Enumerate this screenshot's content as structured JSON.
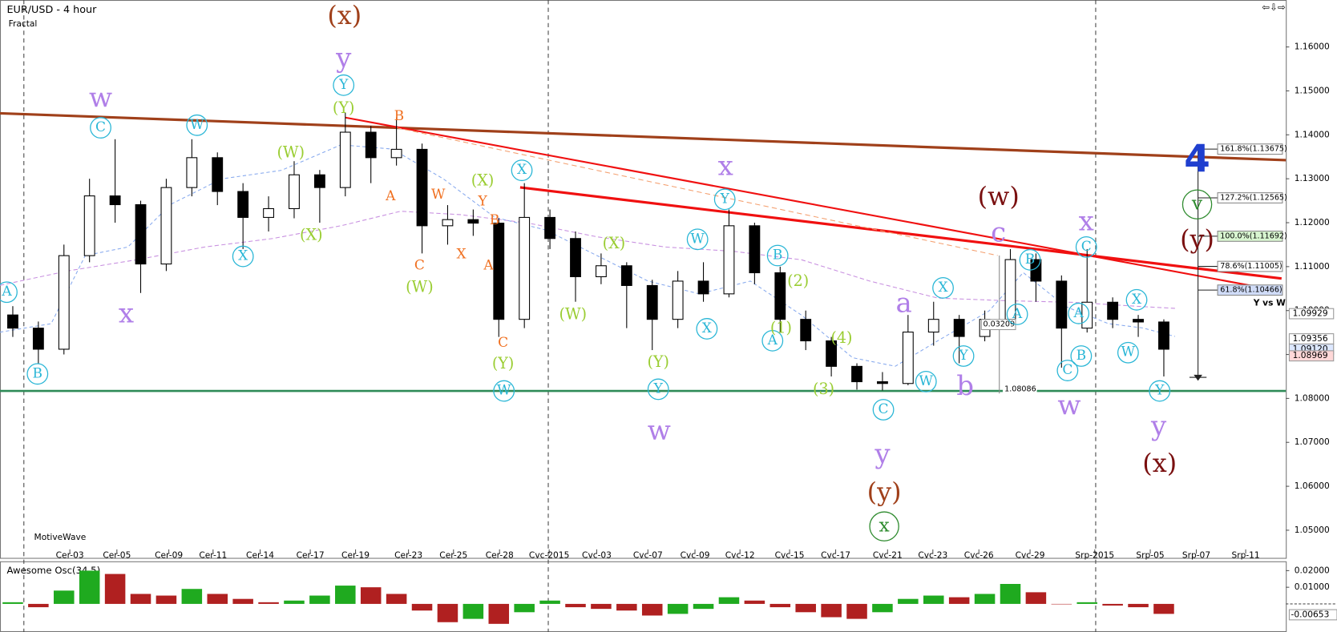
{
  "chart_data": [
    {
      "type": "candlestick",
      "title": "EUR/USD - 4 hour",
      "subtitle": "Fractal",
      "footer": "MotiveWave",
      "open": [
        1.099,
        1.096,
        1.0912,
        1.1125,
        1.1261,
        1.1241,
        1.1106,
        1.128,
        1.1348,
        1.1271,
        1.1212,
        1.1232,
        1.1309,
        1.128,
        1.1406,
        1.1348,
        1.1367,
        1.1193,
        1.1207,
        1.1199,
        1.098,
        1.1212,
        1.1164,
        1.1077,
        1.1102,
        1.1057,
        1.098,
        1.1067,
        1.1038,
        1.1193,
        1.1086,
        1.098,
        1.0931,
        1.0873,
        1.0838,
        1.0834,
        1.0951,
        1.098,
        1.0941,
        1.098,
        1.1116,
        1.1067,
        1.096,
        1.1019,
        1.098,
        1.0974
      ],
      "high": [
        1.101,
        1.0975,
        1.115,
        1.13,
        1.139,
        1.125,
        1.13,
        1.139,
        1.136,
        1.129,
        1.126,
        1.134,
        1.132,
        1.145,
        1.142,
        1.144,
        1.138,
        1.124,
        1.123,
        1.121,
        1.129,
        1.123,
        1.118,
        1.113,
        1.111,
        1.107,
        1.109,
        1.111,
        1.123,
        1.12,
        1.11,
        1.1,
        1.094,
        1.088,
        1.086,
        1.099,
        1.102,
        1.099,
        1.1,
        1.114,
        1.113,
        1.108,
        1.114,
        1.103,
        1.099,
        1.098
      ],
      "low": [
        1.094,
        1.088,
        1.09,
        1.111,
        1.12,
        1.104,
        1.109,
        1.126,
        1.124,
        1.114,
        1.118,
        1.121,
        1.12,
        1.126,
        1.129,
        1.133,
        1.113,
        1.115,
        1.117,
        1.094,
        1.096,
        1.114,
        1.102,
        1.106,
        1.096,
        1.091,
        1.096,
        1.102,
        1.103,
        1.106,
        1.095,
        1.091,
        1.085,
        1.082,
        1.0818,
        1.083,
        1.092,
        1.088,
        1.093,
        1.097,
        1.102,
        1.087,
        1.095,
        1.096,
        1.094,
        1.085
      ],
      "close": [
        1.096,
        1.0912,
        1.1125,
        1.1261,
        1.1241,
        1.1106,
        1.128,
        1.1348,
        1.1271,
        1.1212,
        1.1232,
        1.1309,
        1.128,
        1.1406,
        1.1348,
        1.1367,
        1.1193,
        1.1207,
        1.1199,
        1.098,
        1.1212,
        1.1164,
        1.1077,
        1.1102,
        1.1057,
        1.098,
        1.1067,
        1.1038,
        1.1193,
        1.1086,
        1.098,
        1.0931,
        1.0873,
        1.0838,
        1.0834,
        1.0951,
        1.098,
        1.0941,
        1.098,
        1.1116,
        1.1067,
        1.096,
        1.1019,
        1.098,
        1.0974,
        1.0912
      ],
      "xlim": [
        -0.5,
        49.77
      ],
      "xticks": [
        {
          "value": 2.23,
          "label": "Cer-03"
        },
        {
          "value": 4.07,
          "label": "Cer-05"
        },
        {
          "value": 6.1,
          "label": "Cer-09"
        },
        {
          "value": 7.83,
          "label": "Cer-11"
        },
        {
          "value": 9.67,
          "label": "Cer-14"
        },
        {
          "value": 11.63,
          "label": "Cer-17"
        },
        {
          "value": 13.4,
          "label": "Cer-19"
        },
        {
          "value": 15.47,
          "label": "Cer-23"
        },
        {
          "value": 17.23,
          "label": "Cer-25"
        },
        {
          "value": 19.03,
          "label": "Cer-28"
        },
        {
          "value": 20.97,
          "label": "Cvc-2015"
        },
        {
          "value": 22.83,
          "label": "Cvc-03"
        },
        {
          "value": 24.83,
          "label": "Cvc-07"
        },
        {
          "value": 26.67,
          "label": "Cvc-09"
        },
        {
          "value": 28.43,
          "label": "Cvc-12"
        },
        {
          "value": 30.37,
          "label": "Cvc-15"
        },
        {
          "value": 32.17,
          "label": "Cvc-17"
        },
        {
          "value": 34.2,
          "label": "Cvc-21"
        },
        {
          "value": 35.97,
          "label": "Cvc-23"
        },
        {
          "value": 37.77,
          "label": "Cvc-26"
        },
        {
          "value": 39.77,
          "label": "Cvc-29"
        },
        {
          "value": 42.3,
          "label": "Srp-2015"
        },
        {
          "value": 44.47,
          "label": "Srp-05"
        },
        {
          "value": 46.27,
          "label": "Srp-07"
        },
        {
          "value": 48.2,
          "label": "Srp-11"
        }
      ],
      "ylim": [
        1.0437,
        1.1703
      ],
      "yticks": [
        {
          "value": 1.05,
          "label": "1.05000"
        },
        {
          "value": 1.06,
          "label": "1.06000"
        },
        {
          "value": 1.07,
          "label": "1.07000"
        },
        {
          "value": 1.08,
          "label": "1.08000"
        },
        {
          "value": 1.09,
          "label": "1.09000"
        },
        {
          "value": 1.1,
          "label": "1.10000"
        },
        {
          "value": 1.11,
          "label": "1.11000"
        },
        {
          "value": 1.12,
          "label": "1.12000"
        },
        {
          "value": 1.13,
          "label": "1.13000"
        },
        {
          "value": 1.14,
          "label": "1.14000"
        },
        {
          "value": 1.15,
          "label": "1.15000"
        },
        {
          "value": 1.16,
          "label": "1.16000"
        }
      ],
      "price_labels": [
        {
          "value": 1.09929,
          "label": "1.09929"
        },
        {
          "value": 1.09356,
          "label": "1.09356"
        },
        {
          "value": 1.0912,
          "label": "1.09120"
        },
        {
          "value": 1.08969,
          "label": "1.08969"
        }
      ],
      "fib_levels": [
        {
          "value": 1.13675,
          "label": "161.8%(1.13675)"
        },
        {
          "value": 1.12565,
          "label": "127.2%(1.12565)"
        },
        {
          "value": 1.11692,
          "label": "100.0%(1.11692)"
        },
        {
          "value": 1.11005,
          "label": "78.6%(1.11005)"
        },
        {
          "value": 1.10466,
          "label": "61.8%(1.10466)"
        }
      ],
      "fib_title": "Y vs W",
      "measure_labels": [
        "0.03209",
        "1.08086"
      ],
      "annotations": [
        "w",
        "x",
        "y",
        "x",
        "w",
        "y",
        "a",
        "c",
        "b",
        "w",
        "x",
        "y",
        "(x)",
        "(y)",
        "(w)",
        "(y)",
        "(x)",
        "A",
        "B",
        "C",
        "W",
        "X",
        "Y",
        "X",
        "W",
        "Y",
        "W",
        "X",
        "Y",
        "B",
        "A",
        "C",
        "W",
        "X",
        "Y",
        "B",
        "A",
        "C",
        "B",
        "A",
        "C",
        "W",
        "X",
        "Y",
        "(Y)",
        "(W)",
        "(X)",
        "(X)",
        "(W)",
        "(Y)",
        "(X)",
        "(W)",
        "(Y)",
        "(2)",
        "(1)",
        "(4)",
        "(3)",
        "B",
        "A",
        "W",
        "Y",
        "B",
        "C",
        "X",
        "A",
        "C",
        "x",
        "v",
        "4"
      ]
    },
    {
      "type": "bar",
      "title": "Awesome Osc(34,5)",
      "values": [
        0.001,
        -0.002,
        0.008,
        0.02,
        0.018,
        0.006,
        0.005,
        0.009,
        0.006,
        0.003,
        0.001,
        0.002,
        0.005,
        0.011,
        0.01,
        0.006,
        -0.004,
        -0.011,
        -0.009,
        -0.012,
        -0.005,
        0.002,
        -0.002,
        -0.003,
        -0.004,
        -0.007,
        -0.006,
        -0.003,
        0.004,
        0.002,
        -0.002,
        -0.005,
        -0.008,
        -0.009,
        -0.005,
        0.003,
        0.005,
        0.004,
        0.006,
        0.012,
        0.007,
        0.0,
        0.001,
        -0.001,
        -0.002,
        -0.006
      ],
      "colors": {
        "up": "#1faa1f",
        "down": "#b02020"
      },
      "ylim": [
        -0.0169,
        0.0251
      ],
      "yticks": [
        {
          "value": 0.01,
          "label": "0.01000"
        },
        {
          "value": 0.02,
          "label": "0.02000"
        }
      ],
      "current": {
        "value": -0.00653,
        "label": "-0.00653"
      }
    }
  ]
}
